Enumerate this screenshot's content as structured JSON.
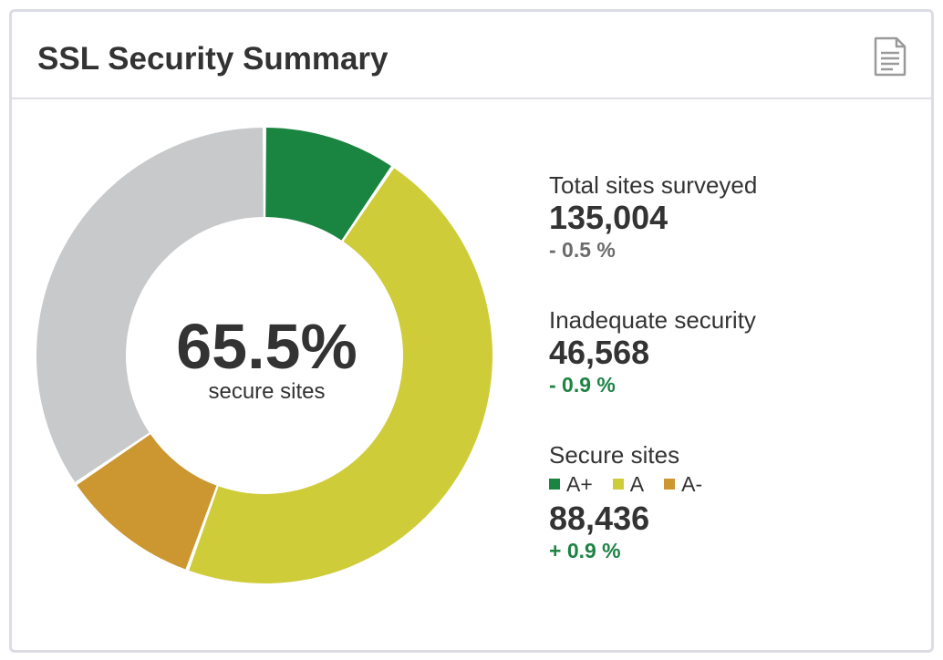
{
  "panel": {
    "title": "SSL Security Summary",
    "icon": "document-icon"
  },
  "donut": {
    "center_value": "65.5%",
    "center_label": "secure sites",
    "segments": [
      {
        "name": "A+",
        "fraction": 0.095,
        "color": "#1a8540"
      },
      {
        "name": "A",
        "fraction": 0.46,
        "color": "#cfcc3a"
      },
      {
        "name": "A-",
        "fraction": 0.1,
        "color": "#cc9630"
      },
      {
        "name": "Inadequate",
        "fraction": 0.345,
        "color": "#c8c9cb"
      }
    ]
  },
  "stats": {
    "total": {
      "label": "Total sites surveyed",
      "value": "135,004",
      "change": "- 0.5 %"
    },
    "inadequate": {
      "label": "Inadequate security",
      "value": "46,568",
      "change": "- 0.9 %"
    },
    "secure": {
      "label": "Secure sites",
      "legend": [
        {
          "label": "A+",
          "color": "#1a8540"
        },
        {
          "label": "A",
          "color": "#cfcc3a"
        },
        {
          "label": "A-",
          "color": "#cc9630"
        }
      ],
      "value": "88,436",
      "change": "+ 0.9 %"
    }
  },
  "colors": {
    "positive": "#1d8343",
    "neutral": "#6b6b6b"
  }
}
